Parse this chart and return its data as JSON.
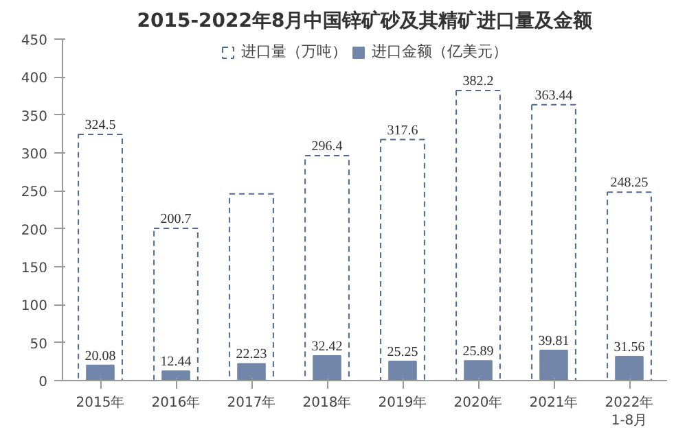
{
  "chart_data": {
    "type": "bar",
    "title": "2015-2022年8月中国锌矿砂及其精矿进口量及金额",
    "categories": [
      "2015年",
      "2016年",
      "2017年",
      "2018年",
      "2019年",
      "2020年",
      "2021年",
      "2022年\n1-8月"
    ],
    "series": [
      {
        "name": "进口量（万吨）",
        "color": "#4a6a9a",
        "line_style": "dashed",
        "values": [
          324.5,
          200.7,
          246,
          296.4,
          317.6,
          382.2,
          363.44,
          248.25
        ],
        "value_labels": [
          "324.5",
          "200.7",
          null,
          "296.4",
          "317.6",
          "382.2",
          "363.44",
          "248.25"
        ]
      },
      {
        "name": "进口金额（亿美元）",
        "color": "#7186a8",
        "line_style": "solid",
        "values": [
          20.08,
          12.44,
          22.23,
          32.42,
          25.25,
          25.89,
          39.81,
          31.56
        ],
        "value_labels": [
          "20.08",
          "12.44",
          "22.23",
          "32.42",
          "25.25",
          "25.89",
          "39.81",
          "31.56"
        ]
      }
    ],
    "ylim": [
      0,
      450
    ],
    "yticks": [
      0,
      50,
      100,
      150,
      200,
      250,
      300,
      350,
      400,
      450
    ],
    "grid": false,
    "legend": "top"
  }
}
